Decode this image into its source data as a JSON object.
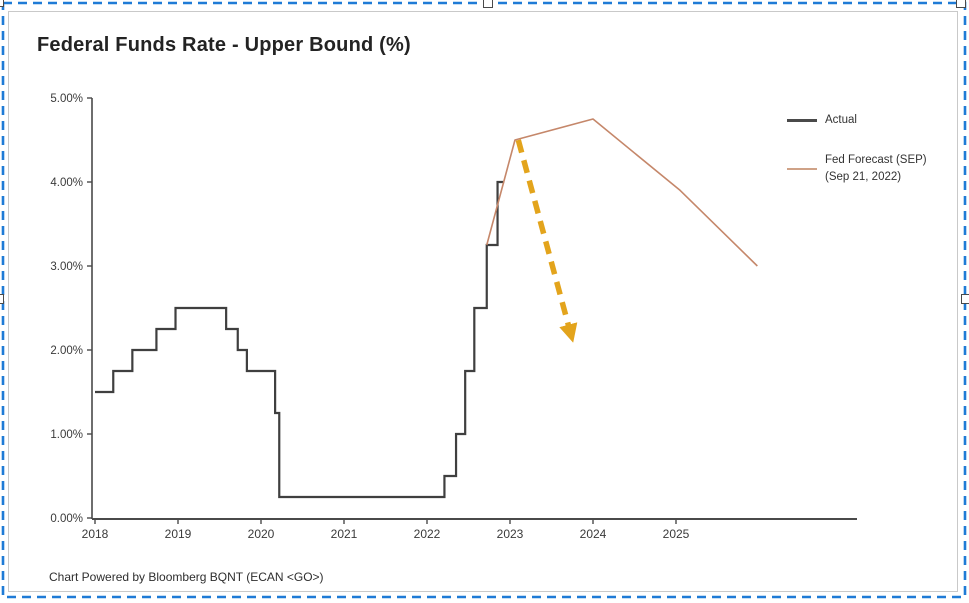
{
  "header": {
    "title": "Federal Funds Rate - Upper Bound (%)"
  },
  "footer": {
    "credit": "Chart Powered by Bloomberg BQNT (ECAN <GO>)"
  },
  "legend": {
    "items": [
      {
        "label": "Actual",
        "color": "#4a4a4a"
      },
      {
        "label": "Fed Forecast (SEP)",
        "label2": "(Sep 21, 2022)",
        "color": "#cfa287"
      }
    ]
  },
  "colors": {
    "actual_line": "#3f3f3f",
    "forecast_line": "#c5876a",
    "arrow": "#e3a41c",
    "axis": "#4a4a4a",
    "tick_text": "#3a3a3a",
    "selection_border": "#1f7bd6"
  },
  "chart_data": {
    "type": "line",
    "title": "Federal Funds Rate - Upper Bound (%)",
    "xlabel": "",
    "ylabel": "",
    "xlim": [
      2018,
      2027.2
    ],
    "ylim": [
      0,
      5
    ],
    "grid": false,
    "legend_position": "right",
    "x_ticks": [
      "2018",
      "2019",
      "2020",
      "2021",
      "2022",
      "2023",
      "2024",
      "2025"
    ],
    "x_tick_values": [
      2018,
      2019,
      2020,
      2021,
      2022,
      2023,
      2024,
      2025
    ],
    "y_ticks": [
      "0.00%",
      "1.00%",
      "2.00%",
      "3.00%",
      "4.00%",
      "5.00%"
    ],
    "y_tick_values": [
      0,
      1,
      2,
      3,
      4,
      5
    ],
    "series": [
      {
        "name": "Actual",
        "style": "step",
        "color": "#3f3f3f",
        "width": 2.2,
        "points": [
          [
            2018.0,
            1.5
          ],
          [
            2018.22,
            1.75
          ],
          [
            2018.45,
            2.0
          ],
          [
            2018.74,
            2.25
          ],
          [
            2018.97,
            2.5
          ],
          [
            2019.58,
            2.25
          ],
          [
            2019.72,
            2.0
          ],
          [
            2019.83,
            1.75
          ],
          [
            2020.17,
            1.25
          ],
          [
            2020.22,
            0.25
          ],
          [
            2022.21,
            0.5
          ],
          [
            2022.35,
            1.0
          ],
          [
            2022.46,
            1.75
          ],
          [
            2022.57,
            2.5
          ],
          [
            2022.72,
            3.25
          ],
          [
            2022.85,
            4.0
          ]
        ],
        "end_x": 2022.93
      },
      {
        "name": "Fed Forecast (SEP) (Sep 21, 2022)",
        "style": "line",
        "color": "#c5876a",
        "width": 1.6,
        "points": [
          [
            2022.72,
            3.25
          ],
          [
            2023.06,
            4.5
          ],
          [
            2024.0,
            4.75
          ],
          [
            2025.05,
            3.9
          ],
          [
            2025.98,
            3.0
          ]
        ]
      }
    ],
    "annotations": [
      {
        "name": "market-expectation-arrow",
        "type": "arrow",
        "style": "dashed",
        "color": "#e3a41c",
        "width": 5.5,
        "from": [
          2023.1,
          4.5
        ],
        "to": [
          2023.73,
          2.2
        ]
      }
    ]
  }
}
